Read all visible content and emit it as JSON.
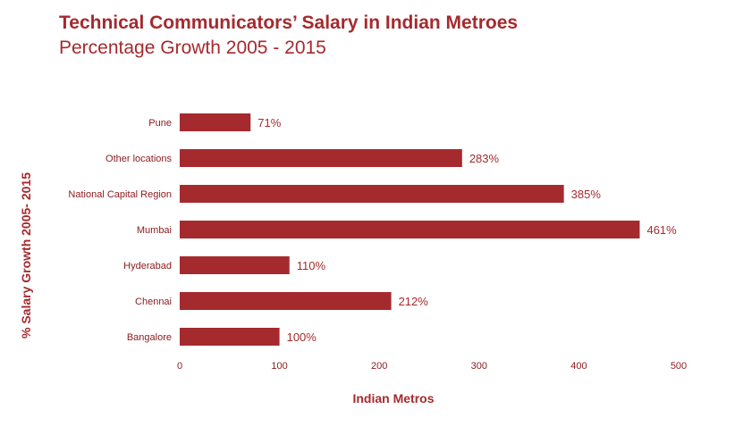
{
  "chart_data": {
    "type": "bar",
    "orientation": "horizontal",
    "title": "Technical Communicators’ Salary in Indian Metroes",
    "subtitle": "Percentage Growth 2005 - 2015",
    "xlabel": "Indian Metros",
    "ylabel": "% Salary Growth 2005- 2015",
    "categories": [
      "Pune",
      "Other locations",
      "National Capital Region",
      "Mumbai",
      "Hyderabad",
      "Chennai",
      "Bangalore"
    ],
    "values": [
      71,
      283,
      385,
      461,
      110,
      212,
      100
    ],
    "data_labels": [
      "71%",
      "283%",
      "385%",
      "461%",
      "110%",
      "212%",
      "100%"
    ],
    "xlim": [
      0,
      500
    ],
    "xticks": [
      0,
      100,
      200,
      300,
      400,
      500
    ],
    "grid": false,
    "bar_color": "#a52a2e"
  }
}
